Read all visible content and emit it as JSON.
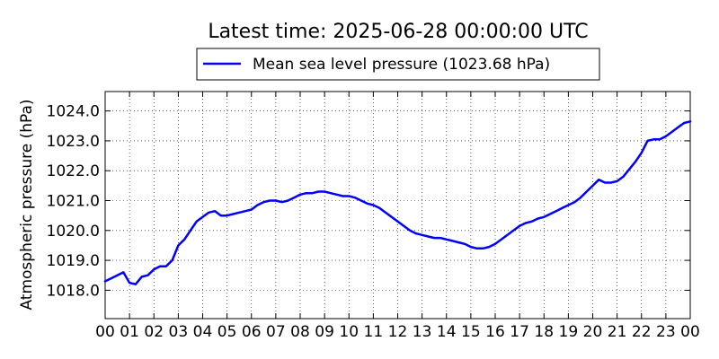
{
  "chart_data": {
    "type": "line",
    "title": "Latest time: 2025-06-28 00:00:00 UTC",
    "xlabel": "",
    "ylabel": "Atmospheric pressure (hPa)",
    "x_tick_labels": [
      "00",
      "01",
      "02",
      "03",
      "04",
      "05",
      "06",
      "07",
      "08",
      "09",
      "10",
      "11",
      "12",
      "13",
      "14",
      "15",
      "16",
      "17",
      "18",
      "19",
      "20",
      "21",
      "22",
      "23",
      "00"
    ],
    "xlim": [
      0,
      24
    ],
    "y_ticks": [
      1018.0,
      1019.0,
      1020.0,
      1021.0,
      1022.0,
      1023.0,
      1024.0
    ],
    "y_tick_labels": [
      "1018.0",
      "1019.0",
      "1020.0",
      "1021.0",
      "1022.0",
      "1023.0",
      "1024.0"
    ],
    "ylim": [
      1017.05,
      1024.65
    ],
    "grid": true,
    "legend_position": "top-center",
    "series": [
      {
        "name": "Mean sea level pressure (1023.68 hPa)",
        "color": "#0000ff",
        "x": [
          0,
          0.25,
          0.5,
          0.75,
          1.0,
          1.25,
          1.5,
          1.75,
          2.0,
          2.25,
          2.5,
          2.75,
          3.0,
          3.25,
          3.5,
          3.75,
          4.0,
          4.25,
          4.5,
          4.75,
          5.0,
          5.25,
          5.5,
          5.75,
          6.0,
          6.25,
          6.5,
          6.75,
          7.0,
          7.25,
          7.5,
          7.75,
          8.0,
          8.25,
          8.5,
          8.75,
          9.0,
          9.25,
          9.5,
          9.75,
          10.0,
          10.25,
          10.5,
          10.75,
          11.0,
          11.25,
          11.5,
          11.75,
          12.0,
          12.25,
          12.5,
          12.75,
          13.0,
          13.25,
          13.5,
          13.75,
          14.0,
          14.25,
          14.5,
          14.75,
          15.0,
          15.25,
          15.5,
          15.75,
          16.0,
          16.25,
          16.5,
          16.75,
          17.0,
          17.25,
          17.5,
          17.75,
          18.0,
          18.25,
          18.5,
          18.75,
          19.0,
          19.25,
          19.5,
          19.75,
          20.0,
          20.25,
          20.5,
          20.75,
          21.0,
          21.25,
          21.5,
          21.75,
          22.0,
          22.25,
          22.5,
          22.75,
          23.0,
          23.25,
          23.5,
          23.75,
          24.0
        ],
        "y": [
          1018.3,
          1018.4,
          1018.5,
          1018.6,
          1018.25,
          1018.2,
          1018.45,
          1018.5,
          1018.7,
          1018.8,
          1018.8,
          1019.0,
          1019.5,
          1019.7,
          1020.0,
          1020.3,
          1020.45,
          1020.6,
          1020.65,
          1020.5,
          1020.5,
          1020.55,
          1020.6,
          1020.65,
          1020.7,
          1020.85,
          1020.95,
          1021.0,
          1021.0,
          1020.95,
          1021.0,
          1021.1,
          1021.2,
          1021.25,
          1021.25,
          1021.3,
          1021.3,
          1021.25,
          1021.2,
          1021.15,
          1021.15,
          1021.1,
          1021.0,
          1020.9,
          1020.85,
          1020.75,
          1020.6,
          1020.45,
          1020.3,
          1020.15,
          1020.0,
          1019.9,
          1019.85,
          1019.8,
          1019.75,
          1019.75,
          1019.7,
          1019.65,
          1019.6,
          1019.55,
          1019.45,
          1019.4,
          1019.4,
          1019.45,
          1019.55,
          1019.7,
          1019.85,
          1020.0,
          1020.15,
          1020.25,
          1020.3,
          1020.4,
          1020.45,
          1020.55,
          1020.65,
          1020.75,
          1020.85,
          1020.95,
          1021.1,
          1021.3,
          1021.5,
          1021.7,
          1021.6,
          1021.6,
          1021.65,
          1021.8,
          1022.05,
          1022.3,
          1022.6,
          1023.0,
          1023.05,
          1023.05,
          1023.15,
          1023.3,
          1023.45,
          1023.6,
          1023.65
        ]
      }
    ]
  }
}
